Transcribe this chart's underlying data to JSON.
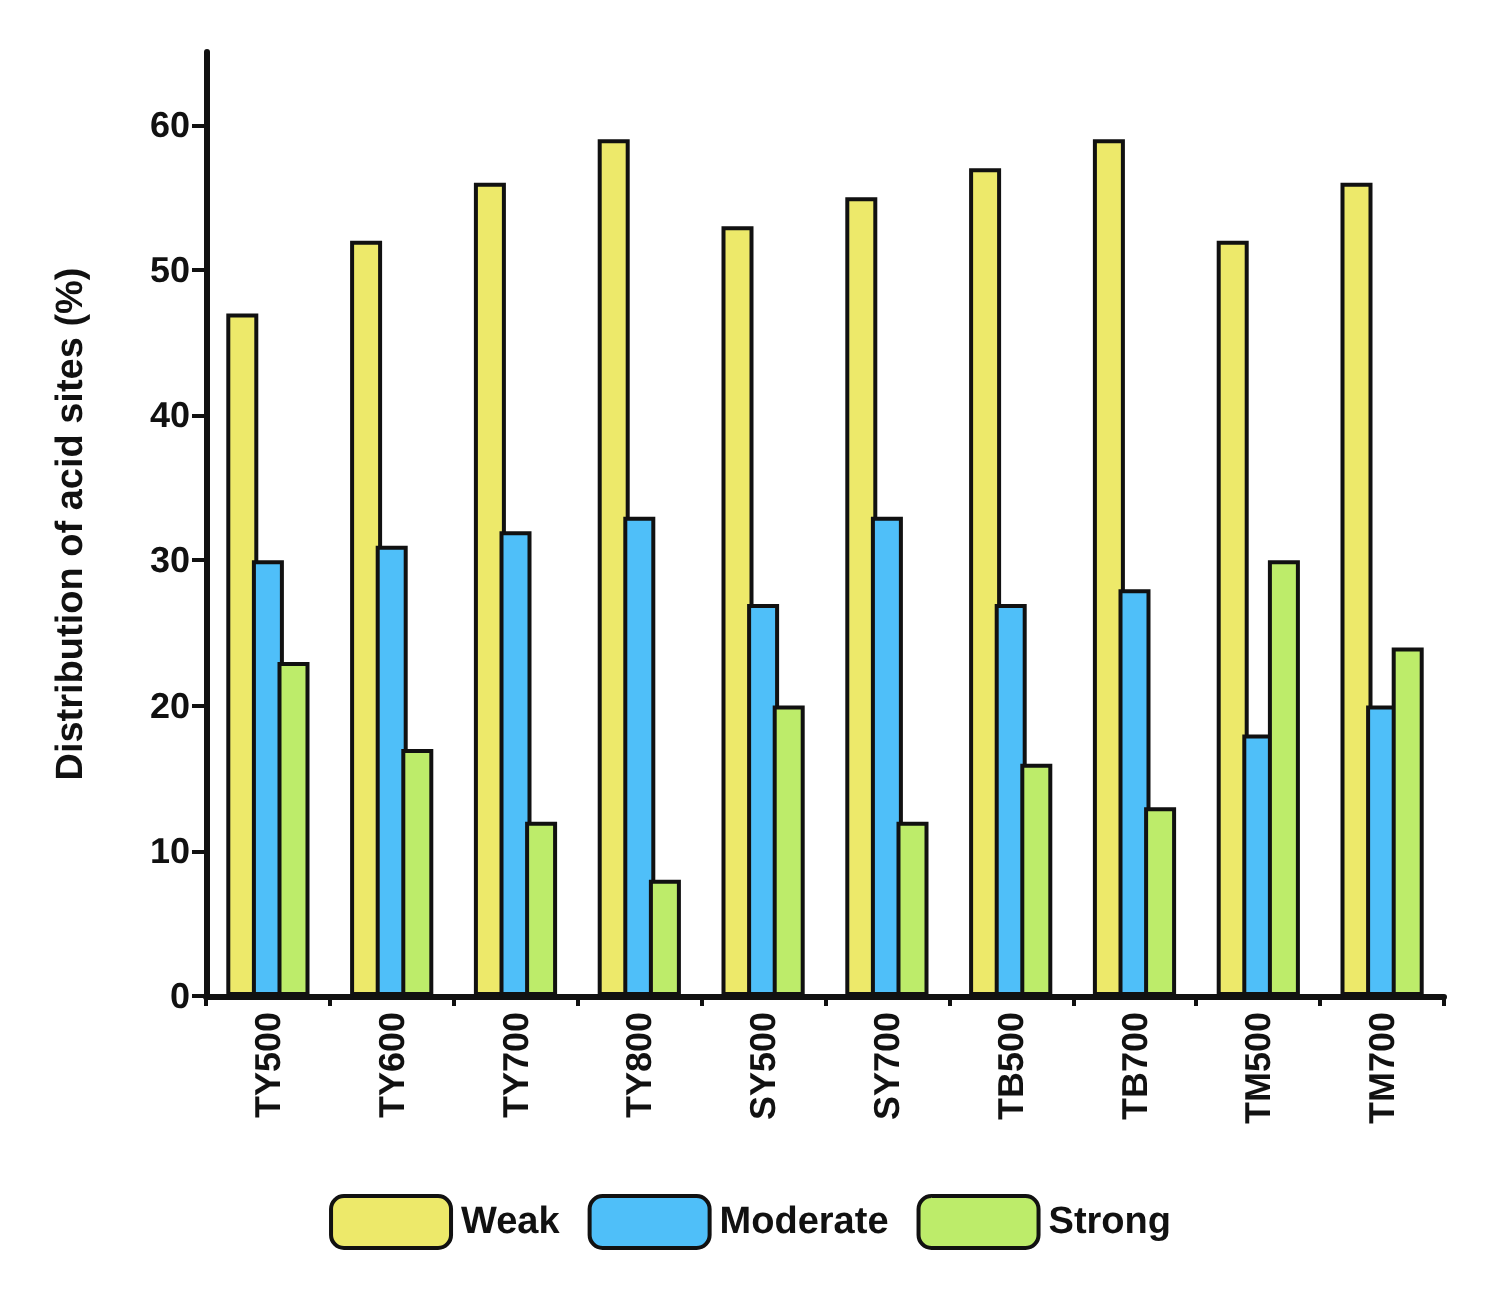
{
  "chart_data": {
    "type": "bar",
    "ylabel": "Distribution of acid sites (%)",
    "categories": [
      "TY500",
      "TY600",
      "TY700",
      "TY800",
      "SY500",
      "SY700",
      "TB500",
      "TB700",
      "TM500",
      "TM700"
    ],
    "series": [
      {
        "name": "Weak",
        "color": "#ede96a",
        "values": [
          47,
          52,
          56,
          59,
          53,
          55,
          57,
          59,
          52,
          56
        ]
      },
      {
        "name": "Moderate",
        "color": "#4fbff9",
        "values": [
          30,
          31,
          32,
          33,
          27,
          33,
          27,
          28,
          18,
          20
        ]
      },
      {
        "name": "Strong",
        "color": "#bdec6a",
        "values": [
          23,
          17,
          12,
          8,
          20,
          12,
          16,
          13,
          30,
          24
        ]
      }
    ],
    "ylim": [
      0,
      65
    ],
    "yticks": [
      0,
      10,
      20,
      30,
      40,
      50,
      60
    ],
    "grid": false,
    "legend": "bottom"
  }
}
